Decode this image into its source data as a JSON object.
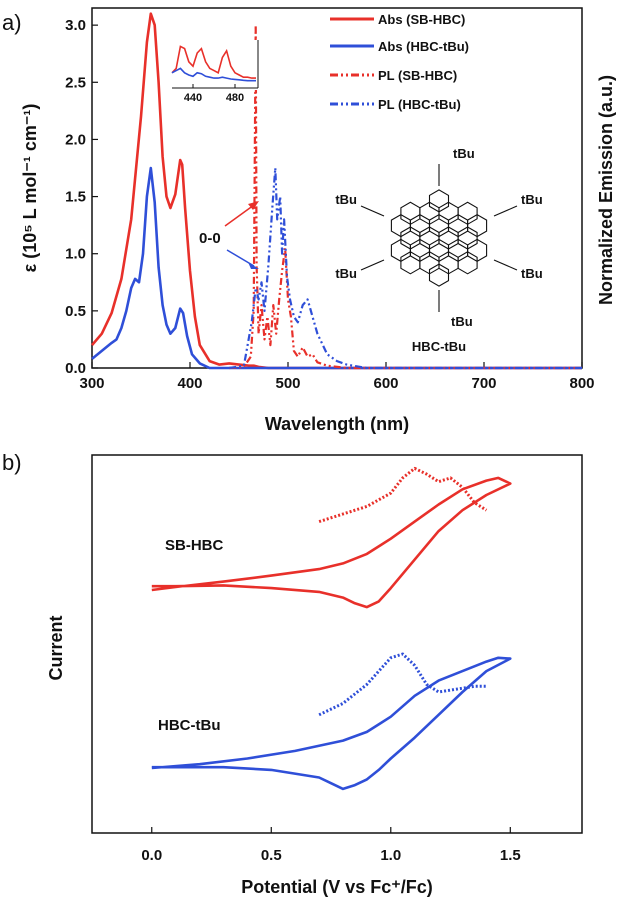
{
  "chart_data": [
    {
      "type": "line",
      "panel_label": "a)",
      "xlabel": "Wavelength (nm)",
      "ylabel": "ε (10⁵ L mol⁻¹ cm⁻¹)",
      "ylabel_right": "Normalized Emission (a.u.)",
      "xlim": [
        300,
        800
      ],
      "ylim": [
        0,
        3.15
      ],
      "xticks": [
        "300",
        "400",
        "500",
        "600",
        "700",
        "800"
      ],
      "yticks": [
        "0.0",
        "0.5",
        "1.0",
        "1.5",
        "2.0",
        "2.5",
        "3.0"
      ],
      "series": [
        {
          "name": "Abs (SB-HBC)",
          "color": "#e8302a",
          "style": "solid",
          "x": [
            300,
            310,
            320,
            330,
            340,
            350,
            356,
            360,
            364,
            368,
            372,
            376,
            380,
            385,
            390,
            392,
            395,
            400,
            405,
            410,
            420,
            430,
            440,
            450,
            460,
            465,
            470,
            480,
            500,
            550,
            800
          ],
          "y": [
            0.2,
            0.3,
            0.48,
            0.78,
            1.3,
            2.2,
            2.85,
            3.1,
            3.0,
            2.5,
            1.85,
            1.5,
            1.4,
            1.52,
            1.82,
            1.78,
            1.4,
            0.85,
            0.45,
            0.2,
            0.06,
            0.03,
            0.04,
            0.03,
            0.02,
            0.02,
            0.01,
            0.0,
            0.0,
            0.0,
            0.0
          ]
        },
        {
          "name": "Abs (HBC-tBu)",
          "color": "#2f4fd8",
          "style": "solid",
          "x": [
            300,
            310,
            320,
            325,
            330,
            335,
            340,
            344,
            348,
            352,
            356,
            360,
            364,
            368,
            372,
            376,
            380,
            385,
            390,
            393,
            397,
            402,
            410,
            420,
            440,
            800
          ],
          "y": [
            0.08,
            0.15,
            0.22,
            0.25,
            0.35,
            0.5,
            0.7,
            0.78,
            0.75,
            1.0,
            1.5,
            1.75,
            1.45,
            0.88,
            0.55,
            0.38,
            0.3,
            0.35,
            0.52,
            0.48,
            0.28,
            0.12,
            0.04,
            0.0,
            0.0,
            0.0
          ]
        },
        {
          "name": "PL (SB-HBC)",
          "color": "#e8302a",
          "style": "dashdot",
          "x": [
            440,
            455,
            462,
            465,
            467,
            468,
            470,
            473,
            476,
            479,
            482,
            485,
            488,
            491,
            494,
            497,
            500,
            503,
            506,
            510,
            515,
            520,
            525,
            530,
            540,
            560,
            580,
            800
          ],
          "y": [
            0.0,
            0.01,
            0.1,
            0.5,
            3.0,
            0.9,
            0.3,
            0.55,
            0.25,
            0.45,
            0.2,
            0.55,
            0.3,
            0.6,
            0.85,
            1.05,
            0.6,
            0.45,
            0.15,
            0.1,
            0.18,
            0.1,
            0.12,
            0.05,
            0.02,
            0.0,
            0.0,
            0.0
          ]
        },
        {
          "name": "PL (HBC-tBu)",
          "color": "#2f4fd8",
          "style": "dashdot",
          "x": [
            440,
            455,
            463,
            467,
            470,
            473,
            476,
            480,
            484,
            487,
            489,
            492,
            494,
            496,
            499,
            502,
            506,
            510,
            515,
            520,
            525,
            530,
            540,
            550,
            560,
            580,
            800
          ],
          "y": [
            0.0,
            0.02,
            0.4,
            0.7,
            0.6,
            0.75,
            0.5,
            0.9,
            1.4,
            1.75,
            1.3,
            1.5,
            1.0,
            1.3,
            0.8,
            0.6,
            0.45,
            0.4,
            0.55,
            0.6,
            0.45,
            0.3,
            0.12,
            0.06,
            0.03,
            0.0,
            0.0
          ]
        }
      ],
      "annotations": {
        "zero_zero": "0-0",
        "molecule": "HBC-tBu",
        "substituent": "tBu"
      },
      "inset": {
        "xlim": [
          420,
          500
        ],
        "xticks": [
          "440",
          "480"
        ],
        "series": [
          {
            "name": "Abs (SB-HBC) ×",
            "color": "#e8302a",
            "x": [
              420,
              424,
              428,
              432,
              436,
              440,
              444,
              448,
              452,
              456,
              460,
              464,
              468,
              472,
              476,
              480,
              484,
              488,
              492,
              496,
              500
            ],
            "y": [
              0.3,
              0.4,
              0.9,
              0.85,
              0.55,
              0.45,
              0.75,
              0.85,
              0.55,
              0.4,
              0.35,
              0.3,
              0.65,
              0.8,
              0.45,
              0.3,
              0.25,
              0.2,
              0.2,
              0.18,
              0.18
            ]
          },
          {
            "name": "Abs (HBC-tBu) ×",
            "color": "#2f4fd8",
            "x": [
              420,
              424,
              428,
              432,
              436,
              440,
              444,
              448,
              452,
              456,
              460,
              464,
              468,
              472,
              476,
              480,
              484,
              488,
              492,
              496,
              500
            ],
            "y": [
              0.3,
              0.35,
              0.4,
              0.3,
              0.25,
              0.22,
              0.3,
              0.28,
              0.22,
              0.2,
              0.18,
              0.18,
              0.2,
              0.18,
              0.16,
              0.15,
              0.14,
              0.13,
              0.12,
              0.12,
              0.12
            ]
          }
        ]
      },
      "legend": [
        "Abs (SB-HBC)",
        "Abs (HBC-tBu)",
        "PL (SB-HBC)",
        "PL (HBC-tBu)"
      ],
      "legend_placement": "top-right"
    },
    {
      "type": "line",
      "panel_label": "b)",
      "xlabel": "Potential (V vs Fc⁺/Fc)",
      "ylabel": "Current",
      "xlim": [
        -0.25,
        1.8
      ],
      "xticks": [
        "0.0",
        "0.5",
        "1.0",
        "1.5"
      ],
      "yticks": [],
      "series": [
        {
          "name": "SB-HBC CV",
          "color": "#e8302a",
          "style": "solid",
          "x": [
            0.0,
            0.1,
            0.3,
            0.5,
            0.7,
            0.8,
            0.9,
            1.0,
            1.1,
            1.2,
            1.3,
            1.4,
            1.45,
            1.5,
            1.4,
            1.3,
            1.2,
            1.1,
            1.0,
            0.95,
            0.9,
            0.85,
            0.8,
            0.7,
            0.5,
            0.3,
            0.1,
            0.0
          ],
          "y": [
            0.0,
            0.08,
            0.22,
            0.38,
            0.55,
            0.7,
            0.95,
            1.35,
            1.8,
            2.25,
            2.65,
            2.88,
            2.95,
            2.8,
            2.5,
            2.1,
            1.55,
            0.8,
            0.05,
            -0.3,
            -0.45,
            -0.35,
            -0.2,
            -0.05,
            0.05,
            0.12,
            0.1,
            0.1
          ]
        },
        {
          "name": "SB-HBC DPV",
          "color": "#e8302a",
          "style": "dotted",
          "x": [
            0.7,
            0.8,
            0.9,
            1.0,
            1.05,
            1.1,
            1.15,
            1.2,
            1.25,
            1.3,
            1.35,
            1.4
          ],
          "y": [
            1.8,
            2.0,
            2.2,
            2.55,
            2.95,
            3.2,
            3.05,
            2.85,
            2.95,
            2.7,
            2.3,
            2.1
          ]
        },
        {
          "name": "HBC-tBu CV",
          "color": "#2f4fd8",
          "style": "solid",
          "x": [
            0.0,
            0.2,
            0.4,
            0.6,
            0.8,
            0.9,
            1.0,
            1.1,
            1.2,
            1.3,
            1.4,
            1.45,
            1.5,
            1.4,
            1.3,
            1.2,
            1.1,
            1.0,
            0.95,
            0.9,
            0.85,
            0.8,
            0.75,
            0.7,
            0.5,
            0.3,
            0.1,
            0.0
          ],
          "y": [
            0.0,
            0.1,
            0.25,
            0.45,
            0.72,
            0.95,
            1.35,
            1.9,
            2.3,
            2.55,
            2.8,
            2.9,
            2.88,
            2.55,
            2.0,
            1.4,
            0.8,
            0.25,
            -0.05,
            -0.3,
            -0.45,
            -0.55,
            -0.4,
            -0.25,
            -0.05,
            0.02,
            0.02,
            0.02
          ]
        },
        {
          "name": "HBC-tBu DPV",
          "color": "#2f4fd8",
          "style": "dotted",
          "x": [
            0.7,
            0.8,
            0.9,
            0.95,
            1.0,
            1.05,
            1.1,
            1.15,
            1.2,
            1.25,
            1.3,
            1.35,
            1.4
          ],
          "y": [
            1.4,
            1.7,
            2.2,
            2.55,
            2.9,
            3.0,
            2.7,
            2.2,
            2.0,
            2.05,
            2.1,
            2.15,
            2.15
          ]
        }
      ],
      "series_labels": [
        "SB-HBC",
        "HBC-tBu"
      ]
    }
  ]
}
